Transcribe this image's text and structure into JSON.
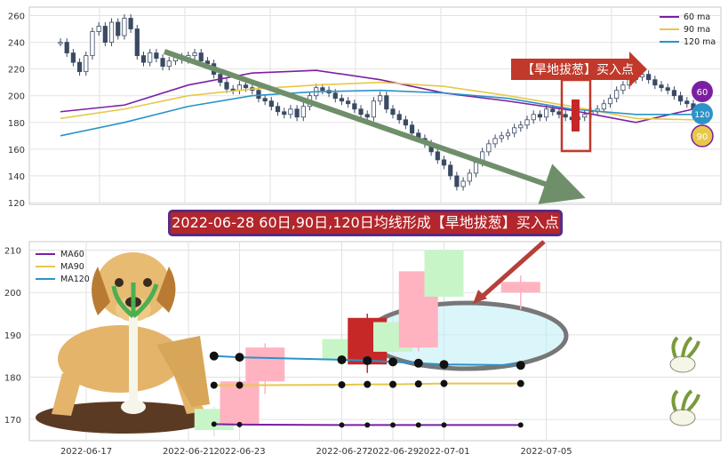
{
  "banner_text": "2022-06-28 60日,90日,120日均线形成【旱地拔葱】买入点",
  "callout_text": "【旱地拔葱】买入点",
  "badges": [
    "60",
    "120",
    "90"
  ],
  "colors": {
    "ma60": "#7b1fa2",
    "ma90": "#e6c84a",
    "ma120": "#2b93c8",
    "candle_up": "#c62828",
    "candle_up_light": "#ffb3c1",
    "candle_down_light": "#c8f5c8",
    "callout": "#c0392b",
    "trend_arrow": "#6f8f6a"
  },
  "chart_data": [
    {
      "type": "candlestick",
      "panel": "overview",
      "ylim": [
        120,
        265
      ],
      "yticks": [
        120,
        140,
        160,
        180,
        200,
        220,
        240,
        260
      ],
      "legend": [
        "60 ma",
        "90 ma",
        "120 ma"
      ],
      "legend_position": "top-right",
      "grid": true,
      "close_series": [
        240,
        232,
        225,
        218,
        230,
        248,
        252,
        240,
        255,
        245,
        258,
        250,
        230,
        225,
        232,
        228,
        222,
        226,
        229,
        227,
        230,
        232,
        226,
        224,
        216,
        210,
        205,
        204,
        208,
        206,
        204,
        198,
        196,
        192,
        188,
        186,
        190,
        184,
        192,
        200,
        206,
        204,
        202,
        198,
        196,
        194,
        190,
        186,
        184,
        196,
        200,
        190,
        186,
        182,
        178,
        172,
        168,
        164,
        158,
        152,
        148,
        140,
        132,
        136,
        142,
        150,
        158,
        164,
        168,
        170,
        172,
        176,
        178,
        182,
        186,
        184,
        190,
        188,
        186,
        184,
        182,
        184,
        186,
        188,
        190,
        194,
        198,
        204,
        208,
        212,
        214,
        216,
        212,
        208,
        206,
        204,
        200,
        196,
        194,
        190
      ],
      "ma60": [
        {
          "x": 0,
          "y": 188
        },
        {
          "x": 10,
          "y": 193
        },
        {
          "x": 20,
          "y": 208
        },
        {
          "x": 30,
          "y": 217
        },
        {
          "x": 40,
          "y": 219
        },
        {
          "x": 50,
          "y": 212
        },
        {
          "x": 60,
          "y": 202
        },
        {
          "x": 70,
          "y": 196
        },
        {
          "x": 80,
          "y": 189
        },
        {
          "x": 90,
          "y": 180
        },
        {
          "x": 99,
          "y": 190
        }
      ],
      "ma90": [
        {
          "x": 0,
          "y": 183
        },
        {
          "x": 10,
          "y": 190
        },
        {
          "x": 20,
          "y": 200
        },
        {
          "x": 30,
          "y": 205
        },
        {
          "x": 40,
          "y": 208
        },
        {
          "x": 50,
          "y": 210
        },
        {
          "x": 60,
          "y": 207
        },
        {
          "x": 70,
          "y": 200
        },
        {
          "x": 80,
          "y": 192
        },
        {
          "x": 90,
          "y": 183
        },
        {
          "x": 99,
          "y": 182
        }
      ],
      "ma120": [
        {
          "x": 0,
          "y": 170
        },
        {
          "x": 10,
          "y": 180
        },
        {
          "x": 20,
          "y": 192
        },
        {
          "x": 30,
          "y": 200
        },
        {
          "x": 40,
          "y": 203
        },
        {
          "x": 50,
          "y": 204
        },
        {
          "x": 60,
          "y": 202
        },
        {
          "x": 70,
          "y": 198
        },
        {
          "x": 80,
          "y": 190
        },
        {
          "x": 90,
          "y": 186
        },
        {
          "x": 99,
          "y": 186
        }
      ]
    },
    {
      "type": "candlestick",
      "panel": "zoom",
      "ylim": [
        165,
        212
      ],
      "yticks": [
        170,
        180,
        190,
        200,
        210
      ],
      "xticks": [
        "2022-06-17",
        "2022-06-21",
        "2022-06-23",
        "2022-06-27",
        "2022-06-29",
        "2022-07-01",
        "2022-07-05"
      ],
      "legend": [
        "MA60",
        "MA90",
        "MA120"
      ],
      "legend_position": "top-left",
      "grid": true,
      "candles": [
        {
          "date": "2022-06-22",
          "open": 167.5,
          "close": 172.5,
          "high": 173,
          "low": 166,
          "style": "down_light"
        },
        {
          "date": "2022-06-23",
          "open": 169,
          "close": 179,
          "high": 180,
          "low": 168,
          "style": "up_light"
        },
        {
          "date": "2022-06-24",
          "open": 179,
          "close": 187,
          "high": 188,
          "low": 176,
          "style": "up_light"
        },
        {
          "date": "2022-06-27",
          "open": 184,
          "close": 189,
          "high": 190,
          "low": 182,
          "style": "down_light"
        },
        {
          "date": "2022-06-28",
          "open": 183,
          "close": 194,
          "high": 195,
          "low": 181,
          "style": "up"
        },
        {
          "date": "2022-06-29",
          "open": 186,
          "close": 193,
          "high": 193,
          "low": 186,
          "style": "down_light"
        },
        {
          "date": "2022-06-30",
          "open": 187,
          "close": 205,
          "high": 205,
          "low": 186,
          "style": "up_light"
        },
        {
          "date": "2022-07-01",
          "open": 199,
          "close": 210,
          "high": 210,
          "low": 198,
          "style": "down_light"
        },
        {
          "date": "2022-07-04",
          "open": 200,
          "close": 202.5,
          "high": 204,
          "low": 196,
          "style": "up_light"
        }
      ],
      "ma60": [
        {
          "x": "2022-06-22",
          "y": 168.9
        },
        {
          "x": "2022-06-23",
          "y": 168.8
        },
        {
          "x": "2022-06-27",
          "y": 168.7
        },
        {
          "x": "2022-06-28",
          "y": 168.7
        },
        {
          "x": "2022-06-29",
          "y": 168.7
        },
        {
          "x": "2022-06-30",
          "y": 168.7
        },
        {
          "x": "2022-07-01",
          "y": 168.7
        },
        {
          "x": "2022-07-04",
          "y": 168.7
        }
      ],
      "ma90": [
        {
          "x": "2022-06-22",
          "y": 178.1
        },
        {
          "x": "2022-06-23",
          "y": 178.1
        },
        {
          "x": "2022-06-27",
          "y": 178.2
        },
        {
          "x": "2022-06-28",
          "y": 178.3
        },
        {
          "x": "2022-06-29",
          "y": 178.3
        },
        {
          "x": "2022-06-30",
          "y": 178.4
        },
        {
          "x": "2022-07-01",
          "y": 178.5
        },
        {
          "x": "2022-07-04",
          "y": 178.5
        }
      ],
      "ma120": [
        {
          "x": "2022-06-22",
          "y": 185.0
        },
        {
          "x": "2022-06-23",
          "y": 184.7
        },
        {
          "x": "2022-06-27",
          "y": 184.1
        },
        {
          "x": "2022-06-28",
          "y": 183.9
        },
        {
          "x": "2022-06-29",
          "y": 183.6
        },
        {
          "x": "2022-06-30",
          "y": 183.3
        },
        {
          "x": "2022-07-01",
          "y": 183.0
        },
        {
          "x": "2022-07-04",
          "y": 182.8
        }
      ]
    }
  ]
}
